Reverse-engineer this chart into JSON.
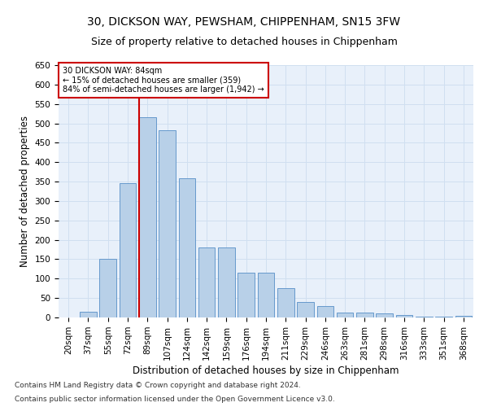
{
  "title1": "30, DICKSON WAY, PEWSHAM, CHIPPENHAM, SN15 3FW",
  "title2": "Size of property relative to detached houses in Chippenham",
  "xlabel": "Distribution of detached houses by size in Chippenham",
  "ylabel": "Number of detached properties",
  "categories": [
    "20sqm",
    "37sqm",
    "55sqm",
    "72sqm",
    "89sqm",
    "107sqm",
    "124sqm",
    "142sqm",
    "159sqm",
    "176sqm",
    "194sqm",
    "211sqm",
    "229sqm",
    "246sqm",
    "263sqm",
    "281sqm",
    "298sqm",
    "316sqm",
    "333sqm",
    "351sqm",
    "368sqm"
  ],
  "values": [
    0,
    15,
    150,
    347,
    515,
    482,
    358,
    180,
    180,
    116,
    116,
    76,
    40,
    30,
    13,
    13,
    10,
    7,
    3,
    3,
    5
  ],
  "bar_color": "#b8d0e8",
  "bar_edge_color": "#6699cc",
  "vline_color": "#cc0000",
  "annotation_text": "30 DICKSON WAY: 84sqm\n← 15% of detached houses are smaller (359)\n84% of semi-detached houses are larger (1,942) →",
  "annotation_box_color": "#ffffff",
  "annotation_box_edge_color": "#cc0000",
  "ylim": [
    0,
    650
  ],
  "yticks": [
    0,
    50,
    100,
    150,
    200,
    250,
    300,
    350,
    400,
    450,
    500,
    550,
    600,
    650
  ],
  "grid_color": "#d0dff0",
  "background_color": "#e8f0fa",
  "footer1": "Contains HM Land Registry data © Crown copyright and database right 2024.",
  "footer2": "Contains public sector information licensed under the Open Government Licence v3.0.",
  "title1_fontsize": 10,
  "title2_fontsize": 9,
  "xlabel_fontsize": 8.5,
  "ylabel_fontsize": 8.5,
  "tick_fontsize": 7.5,
  "footer_fontsize": 6.5,
  "vline_bar_index": 4
}
